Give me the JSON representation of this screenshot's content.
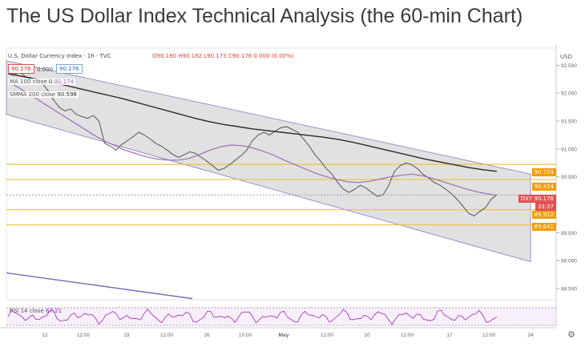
{
  "title": "The US Dollar Index Technical Analysis (the 60-min Chart)",
  "header": {
    "symbol": "U.S. Dollar Currency Index · 1h · TVC",
    "ohlc": "O90.180 H90.182 L90.173 C90.176 0.000 (0.00%)",
    "bid": "90.176",
    "spread": "0.000",
    "ask": "90.176",
    "currency": "USD"
  },
  "indicators": {
    "ma_label": "MA 100 close 0",
    "ma_value": "90.174",
    "smma_label": "SMMA 200 close",
    "smma_value": "90.598",
    "rsi_label": "RSI 14 close",
    "rsi_value": "67.21"
  },
  "price_tags": {
    "upper1": "90.724",
    "upper2": "90.454",
    "current_label": "DXY",
    "current": "90.176",
    "countdown": "33:37",
    "lower1": "89.912",
    "lower2": "89.641"
  },
  "colors": {
    "candle": "#555555",
    "ma100": "#9c6fb5",
    "smma200": "#2b2b2b",
    "channel_fill": "#d9d9d9",
    "channel_line": "#9a93c9",
    "level_line": "#f0c040",
    "tag": "#f59b00",
    "current_tag": "#e05252",
    "rsi": "#9c27b0"
  },
  "chart_data": {
    "type": "line",
    "y_ticks": [
      "92.500",
      "92.000",
      "91.500",
      "91.000",
      "90.500",
      "89.500",
      "89.000",
      "88.500"
    ],
    "ylim": [
      88.3,
      92.75
    ],
    "x_ticks": [
      "12",
      "12:00",
      "19",
      "12:00",
      "26",
      "10:00",
      "May",
      "12:00",
      "10",
      "12:00",
      "17",
      "12:00",
      "24"
    ],
    "levels": [
      90.724,
      90.454,
      89.912,
      89.641
    ],
    "series": [
      {
        "name": "U.S. Dollar Currency Index",
        "values": [
          92.35,
          92.32,
          92.38,
          92.3,
          92.25,
          92.22,
          92.18,
          92.05,
          91.88,
          91.75,
          91.68,
          91.72,
          91.62,
          91.58,
          91.55,
          91.6,
          91.5,
          91.1,
          91.05,
          90.98,
          91.08,
          91.15,
          91.22,
          91.3,
          91.25,
          91.18,
          91.1,
          91.05,
          90.98,
          90.9,
          90.85,
          90.9,
          90.95,
          90.92,
          90.85,
          90.78,
          90.7,
          90.62,
          90.65,
          90.72,
          90.8,
          90.88,
          90.98,
          91.15,
          91.25,
          91.3,
          91.25,
          91.32,
          91.38,
          91.4,
          91.35,
          91.3,
          91.18,
          91.05,
          90.9,
          90.78,
          90.65,
          90.55,
          90.4,
          90.28,
          90.22,
          90.28,
          90.35,
          90.3,
          90.22,
          90.15,
          90.18,
          90.35,
          90.6,
          90.7,
          90.75,
          90.72,
          90.65,
          90.55,
          90.48,
          90.4,
          90.35,
          90.28,
          90.2,
          90.1,
          89.98,
          89.85,
          89.8,
          89.88,
          89.95,
          90.1,
          90.18
        ]
      },
      {
        "name": "MA 100",
        "values": [
          92.2,
          92.1,
          91.98,
          91.86,
          91.74,
          91.62,
          91.5,
          91.38,
          91.26,
          91.15,
          91.06,
          90.98,
          90.92,
          90.86,
          90.82,
          90.8,
          90.8,
          90.83,
          90.9,
          90.98,
          91.04,
          91.07,
          91.06,
          91.02,
          90.96,
          90.89,
          90.8,
          90.72,
          90.64,
          90.56,
          90.5,
          90.45,
          90.41,
          90.4,
          90.42,
          90.46,
          90.5,
          90.53,
          90.55,
          90.52,
          90.47,
          90.41,
          90.35,
          90.29,
          90.24,
          90.2,
          90.17
        ]
      },
      {
        "name": "SMMA 200",
        "values": [
          92.35,
          92.3,
          92.25,
          92.2,
          92.14,
          92.08,
          92.02,
          91.96,
          91.9,
          91.83,
          91.76,
          91.69,
          91.62,
          91.55,
          91.49,
          91.44,
          91.4,
          91.36,
          91.33,
          91.3,
          91.27,
          91.24,
          91.21,
          91.17,
          91.12,
          91.06,
          91.0,
          90.94,
          90.88,
          90.82,
          90.77,
          90.72,
          90.67,
          90.63,
          90.6
        ]
      }
    ]
  }
}
